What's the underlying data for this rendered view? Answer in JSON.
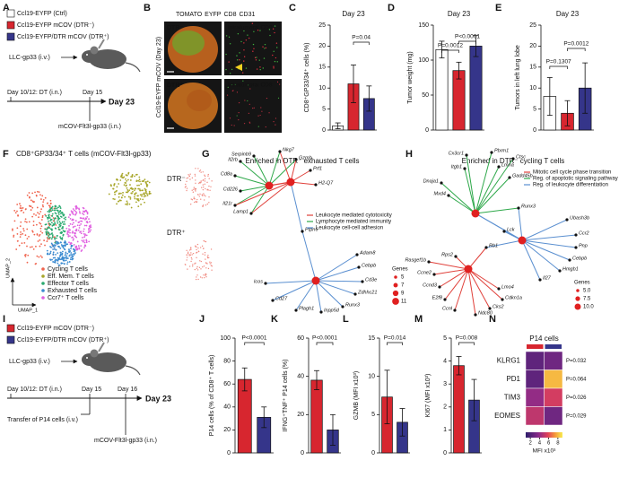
{
  "panel_labels": [
    "A",
    "B",
    "C",
    "D",
    "E",
    "F",
    "G",
    "H",
    "I",
    "J",
    "K",
    "L",
    "M",
    "N"
  ],
  "panel_a": {
    "legend": [
      {
        "name": "Ccl19-EYFP (Ctrl)",
        "color": "#ffffff"
      },
      {
        "name": "Ccl19-EYFP mCOV (DTR⁻)",
        "color": "#d7262f"
      },
      {
        "name": "Ccl19-EYFP/DTR mCOV (DTR⁺)",
        "color": "#35358a"
      }
    ],
    "injection": "LLC-gp33 (i.v.)",
    "day_dt": "Day 10/12: DT (i.n.)",
    "day_15": "Day 15",
    "day_end": "Day 23",
    "vaccine": "mCOV-Flt3l-gp33 (i.n.)"
  },
  "panel_b": {
    "channels": [
      {
        "name": "TOMATO",
        "color": "#f08a24"
      },
      {
        "name": "EYFP",
        "color": "#3aa63a"
      },
      {
        "name": "CD8",
        "color": "#e0203a"
      },
      {
        "name": "CD31",
        "color": "#1fb5d6"
      }
    ],
    "side_label": "Ccl19-EYFP mCOV (Day 23)",
    "row_labels": [
      "DTR⁻",
      "DTR⁺"
    ],
    "inset_labels": [
      "Intratumoral CD8",
      "Intratumoral CD8"
    ]
  },
  "panel_f": {
    "title": "CD8⁺GP33/34⁺ T cells (mCOV-Flt3l-gp33)",
    "legend": [
      {
        "name": "Cycling T cells",
        "color": "#f0644e"
      },
      {
        "name": "Eff. Mem. T cells",
        "color": "#a8a62a"
      },
      {
        "name": "Effector T cells",
        "color": "#2aaa70"
      },
      {
        "name": "Exhausted T cells",
        "color": "#3a8ad0"
      },
      {
        "name": "Ccr7⁺ T cells",
        "color": "#e060e0"
      }
    ],
    "x_axis": "UMAP_1",
    "y_axis": "UMAP_2",
    "split_labels": [
      "DTR⁻",
      "DTR⁺"
    ]
  },
  "panel_g": {
    "title": "Enriched in DTR⁻ exhausted T cells",
    "terms": [
      {
        "name": "Leukocyte mediated cytotoxicity",
        "color": "#e0403a"
      },
      {
        "name": "Lymphocyte mediated immunity",
        "color": "#2ea84a"
      },
      {
        "name": "Leukocyte cell-cell adhesion",
        "color": "#5a8fd0"
      }
    ],
    "genes": [
      "Il2rb",
      "Serpinb9",
      "Nkg7",
      "Gzmb",
      "Prf1",
      "H2-Q7",
      "Cd8a",
      "Cd226",
      "Il21r",
      "Lamp1",
      "Ptpn6",
      "Adam8",
      "Cebpb",
      "Cd3e",
      "Zdhhc21",
      "Runx3",
      "Inpp5d",
      "Plagh1",
      "Cd27",
      "Icos"
    ],
    "size_title": "Genes",
    "sizes": [
      5,
      7,
      9,
      11
    ]
  },
  "panel_h": {
    "title": "Enriched in DTR⁻ cycling T cells",
    "terms": [
      {
        "name": "Mitotic cell cycle phase transition",
        "color": "#e0403a"
      },
      {
        "name": "Reg. of apoptotic signaling pathway",
        "color": "#2ea84a"
      },
      {
        "name": "Reg. of leukocyte differentiation",
        "color": "#5a8fd0"
      }
    ],
    "genes": [
      "Cx3cr1",
      "Pbrm1",
      "Ctsc",
      "Itgb1",
      "Lmna",
      "Gadd45b",
      "Dnaja1",
      "Mxd4",
      "Runx3",
      "Ubash3b",
      "Lck",
      "Ccr2",
      "Rb1",
      "Pnp",
      "Cebpb",
      "Hmgb1",
      "Il27",
      "Rps2",
      "Rasgef1b",
      "Ccne2",
      "Ccnd3",
      "E2f8",
      "Ccnl",
      "Ndc80",
      "Lmo4",
      "Cdkn1a",
      "Cks2"
    ],
    "size_title": "Genes",
    "sizes": [
      {
        "value": 5,
        "label": "5.0"
      },
      {
        "value": 7.5,
        "label": "7.5"
      },
      {
        "value": 10,
        "label": "10.0"
      }
    ]
  },
  "panel_i": {
    "legend": [
      {
        "name": "Ccl19-EYFP mCOV (DTR⁻)",
        "color": "#d7262f"
      },
      {
        "name": "Ccl19-EYFP/DTR mCOV (DTR⁺)",
        "color": "#35358a"
      }
    ],
    "injection": "LLC-gp33 (i.v.)",
    "day_dt": "Day 10/12: DT (i.n.)",
    "day_15": "Day 15",
    "day_16": "Day 16",
    "day_end": "Day 23",
    "transfer": "Transfer of P14 cells (i.v.)",
    "vaccine": "mCOV-Flt3l-gp33 (i.n.)"
  },
  "chart_data": [
    {
      "type": "bar",
      "title": "Day 23",
      "ylabel": "CD8⁺GP33/34⁺ cells (%)",
      "categories": [
        null,
        null,
        null
      ],
      "values": [
        1,
        11,
        7.5
      ],
      "errors": [
        0.7,
        4.5,
        3
      ],
      "colors": [
        "#ffffff",
        "#d7262f",
        "#35358a"
      ],
      "ylim": [
        0,
        25
      ],
      "yticks": [
        0,
        5,
        10,
        15,
        20,
        25
      ],
      "annotations": [
        "P=0.04"
      ]
    },
    {
      "type": "bar",
      "title": "Day 23",
      "ylabel": "Tumor weight (mg)",
      "categories": [
        null,
        null,
        null
      ],
      "values": [
        115,
        85,
        120
      ],
      "errors": [
        12,
        12,
        15
      ],
      "colors": [
        "#ffffff",
        "#d7262f",
        "#35358a"
      ],
      "ylim": [
        0,
        150
      ],
      "yticks": [
        0,
        50,
        100,
        150
      ],
      "annotations": [
        "P=0.0012",
        "P<0.0001"
      ]
    },
    {
      "type": "bar",
      "title": "Day 23",
      "ylabel": "Tumors in left lung lobe",
      "categories": [
        null,
        null,
        null
      ],
      "values": [
        8,
        4,
        10
      ],
      "errors": [
        4.5,
        3,
        6
      ],
      "colors": [
        "#ffffff",
        "#d7262f",
        "#35358a"
      ],
      "ylim": [
        0,
        25
      ],
      "yticks": [
        0,
        5,
        10,
        15,
        20,
        25
      ],
      "annotations": [
        "P=0.1307",
        "P=0.0012"
      ]
    },
    {
      "type": "bar",
      "ylabel": "P14 cells (% of CD8⁺ T cells)",
      "categories": [
        null,
        null
      ],
      "values": [
        64,
        31
      ],
      "errors": [
        10,
        9
      ],
      "colors": [
        "#d7262f",
        "#35358a"
      ],
      "ylim": [
        0,
        100
      ],
      "yticks": [
        0,
        20,
        40,
        60,
        80,
        100
      ],
      "annotations": [
        "P<0.0001"
      ]
    },
    {
      "type": "bar",
      "ylabel": "IFNG⁺TNF⁺ P14 cells (%)",
      "categories": [
        null,
        null
      ],
      "values": [
        38,
        12
      ],
      "errors": [
        5,
        8
      ],
      "colors": [
        "#d7262f",
        "#35358a"
      ],
      "ylim": [
        0,
        60
      ],
      "yticks": [
        0,
        20,
        40,
        60
      ],
      "annotations": [
        "P<0.0001"
      ]
    },
    {
      "type": "bar",
      "ylabel": "GZMB (MFI x10³)",
      "categories": [
        null,
        null
      ],
      "values": [
        7.3,
        4
      ],
      "errors": [
        3.5,
        1.8
      ],
      "colors": [
        "#d7262f",
        "#35358a"
      ],
      "ylim": [
        0,
        15
      ],
      "yticks": [
        0,
        5,
        10,
        15
      ],
      "annotations": [
        "P=0.014"
      ]
    },
    {
      "type": "bar",
      "ylabel": "KI67 (MFI x10³)",
      "categories": [
        null,
        null
      ],
      "values": [
        3.8,
        2.3
      ],
      "errors": [
        0.4,
        0.9
      ],
      "colors": [
        "#d7262f",
        "#35358a"
      ],
      "ylim": [
        0,
        5
      ],
      "yticks": [
        0,
        1,
        2,
        3,
        4,
        5
      ],
      "annotations": [
        "P=0.008"
      ]
    },
    {
      "type": "heatmap",
      "title": "P14 cells",
      "column_colors": [
        "#d7262f",
        "#35358a"
      ],
      "rows": [
        "KLRG1",
        "PD1",
        "TIM3",
        "EOMES"
      ],
      "row_annotations": [
        "P=0.032",
        "P=0.064",
        "P=0.026",
        "P=0.029"
      ],
      "values": [
        [
          2.5,
          3
        ],
        [
          2.5,
          8
        ],
        [
          4,
          5.5
        ],
        [
          5,
          3
        ]
      ],
      "zlim": [
        1,
        9
      ],
      "colorbar_ticks": [
        2,
        4,
        6,
        8
      ],
      "colorbar_label": "MFI x10³"
    }
  ]
}
